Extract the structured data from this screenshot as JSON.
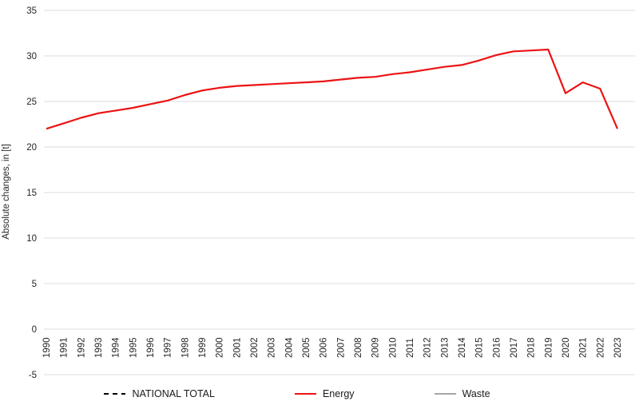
{
  "chart_data": {
    "type": "line",
    "title": "",
    "xlabel": "",
    "ylabel": "Absolute changes, in [t]",
    "ylim": [
      -5,
      35
    ],
    "ytick_step": 5,
    "yticks": [
      -5,
      0,
      5,
      10,
      15,
      20,
      25,
      30,
      35
    ],
    "grid": "horizontal-only",
    "gridline_color": "#dcdcdc",
    "legend_position": "bottom",
    "x": [
      1990,
      1991,
      1992,
      1993,
      1994,
      1995,
      1996,
      1997,
      1998,
      1999,
      2000,
      2001,
      2002,
      2003,
      2004,
      2005,
      2006,
      2007,
      2008,
      2009,
      2010,
      2011,
      2012,
      2013,
      2014,
      2015,
      2016,
      2017,
      2018,
      2019,
      2020,
      2021,
      2022,
      2023
    ],
    "series": [
      {
        "name": "NATIONAL TOTAL",
        "color": "#000000",
        "line_style": "dashed",
        "visible_in_plot": false,
        "values": []
      },
      {
        "name": "Energy",
        "color": "#ec1313",
        "line_style": "solid",
        "visible_in_plot": true,
        "values": [
          22.0,
          22.6,
          23.2,
          23.7,
          24.0,
          24.3,
          24.7,
          25.1,
          25.7,
          26.2,
          26.5,
          26.7,
          26.8,
          26.9,
          27.0,
          27.1,
          27.2,
          27.4,
          27.6,
          27.7,
          28.0,
          28.2,
          28.5,
          28.8,
          29.0,
          29.5,
          30.1,
          30.5,
          30.6,
          30.7,
          25.9,
          27.1,
          26.4,
          22.0
        ]
      },
      {
        "name": "Waste",
        "color": "#a6a6a6",
        "line_style": "solid",
        "visible_in_plot": false,
        "values": []
      }
    ]
  },
  "legend": {
    "items": [
      {
        "label": "NATIONAL TOTAL"
      },
      {
        "label": "Energy"
      },
      {
        "label": "Waste"
      }
    ]
  }
}
